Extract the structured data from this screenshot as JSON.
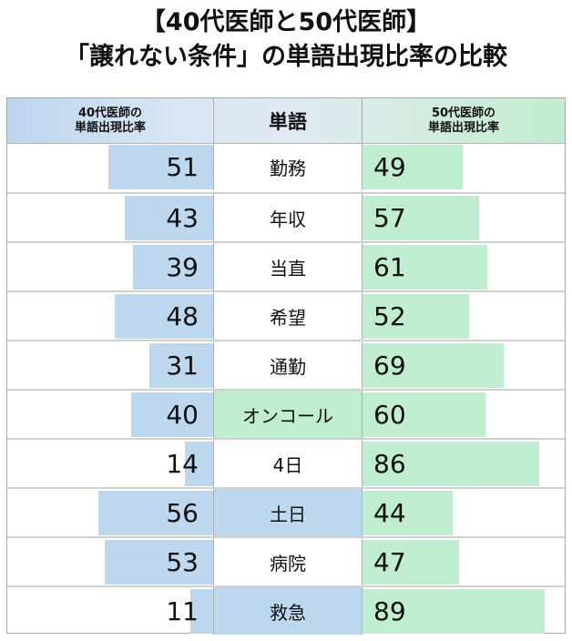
{
  "title": {
    "line1": "【40代医師と50代医師】",
    "line2": "「譲れない条件」の単語出現比率の比較"
  },
  "header": {
    "left_line1": "40代医師の",
    "left_line2": "単語出現比率",
    "middle": "単語",
    "right_line1": "50代医師の",
    "right_line2": "単語出現比率"
  },
  "colors": {
    "bar_40s": "#bdd7ee",
    "bar_50s": "#c0ecd0",
    "highlight_green": "#c0ecd0",
    "highlight_blue": "#bdd7ee"
  },
  "rows": [
    {
      "word": "勤務",
      "v40": "51",
      "v50": "49",
      "highlight": ""
    },
    {
      "word": "年収",
      "v40": "43",
      "v50": "57",
      "highlight": ""
    },
    {
      "word": "当直",
      "v40": "39",
      "v50": "61",
      "highlight": ""
    },
    {
      "word": "希望",
      "v40": "48",
      "v50": "52",
      "highlight": ""
    },
    {
      "word": "通勤",
      "v40": "31",
      "v50": "69",
      "highlight": ""
    },
    {
      "word": "オンコール",
      "v40": "40",
      "v50": "60",
      "highlight": "green"
    },
    {
      "word": "4日",
      "v40": "14",
      "v50": "86",
      "highlight": ""
    },
    {
      "word": "土日",
      "v40": "56",
      "v50": "44",
      "highlight": "blue"
    },
    {
      "word": "病院",
      "v40": "53",
      "v50": "47",
      "highlight": ""
    },
    {
      "word": "救急",
      "v40": "11",
      "v50": "89",
      "highlight": "blue"
    }
  ],
  "chart_data": {
    "type": "bar",
    "title": "【40代医師と50代医師】「譲れない条件」の単語出現比率の比較",
    "xlabel": "",
    "ylabel": "単語出現比率",
    "categories": [
      "勤務",
      "年収",
      "当直",
      "希望",
      "通勤",
      "オンコール",
      "4日",
      "土日",
      "病院",
      "救急"
    ],
    "series": [
      {
        "name": "40代医師の単語出現比率",
        "values": [
          51,
          43,
          39,
          48,
          31,
          40,
          14,
          56,
          53,
          11
        ]
      },
      {
        "name": "50代医師の単語出現比率",
        "values": [
          49,
          57,
          61,
          52,
          69,
          60,
          86,
          44,
          47,
          89
        ]
      }
    ],
    "ylim": [
      0,
      100
    ],
    "orientation": "horizontal-diverging",
    "grid": false,
    "legend_position": "column headers"
  }
}
